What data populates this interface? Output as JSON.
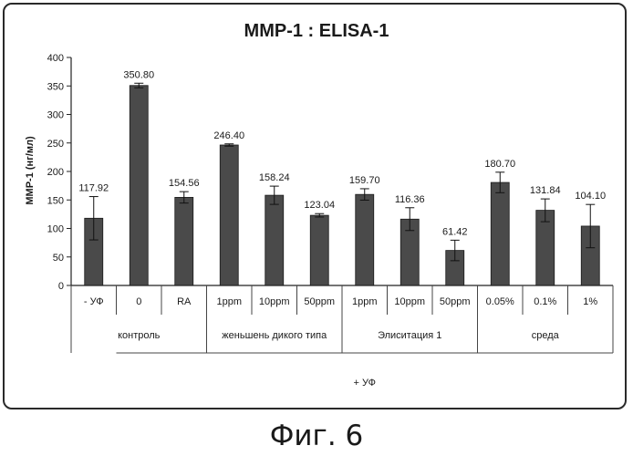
{
  "chart_data": {
    "type": "bar",
    "title": "MMP-1 : ELISA-1",
    "ylabel": "MMP-1 (нг/мл)",
    "xlabel": "",
    "ylim": [
      0,
      400
    ],
    "yticks": [
      0,
      50,
      100,
      150,
      200,
      250,
      300,
      350,
      400
    ],
    "grid": false,
    "legend": "none",
    "bar_color": "#4a4a4a",
    "categories": [
      "- УФ",
      "0",
      "RA",
      "1ppm",
      "10ppm",
      "50ppm",
      "1ppm",
      "10ppm",
      "50ppm",
      "0.05%",
      "0.1%",
      "1%"
    ],
    "values": [
      117.92,
      350.8,
      154.56,
      246.4,
      158.24,
      123.04,
      159.7,
      116.36,
      61.42,
      180.7,
      131.84,
      104.1
    ],
    "value_labels": [
      "117.92",
      "350.80",
      "154.56",
      "246.40",
      "158.24",
      "123.04",
      "159.70",
      "116.36",
      "61.42",
      "180.70",
      "131.84",
      "104.10"
    ],
    "error": [
      38,
      4,
      10,
      2,
      16,
      3,
      10,
      20,
      18,
      18,
      20,
      38
    ],
    "groups": [
      {
        "label": "контроль",
        "start": 0,
        "end": 2
      },
      {
        "label": "женьшень дикого типа",
        "start": 3,
        "end": 5
      },
      {
        "label": "Элиситация 1",
        "start": 6,
        "end": 8
      },
      {
        "label": "среда",
        "start": 9,
        "end": 11
      }
    ],
    "supergroup": {
      "label": "+ УФ",
      "start": 1,
      "end": 11
    }
  },
  "caption": "Фиг. 6"
}
